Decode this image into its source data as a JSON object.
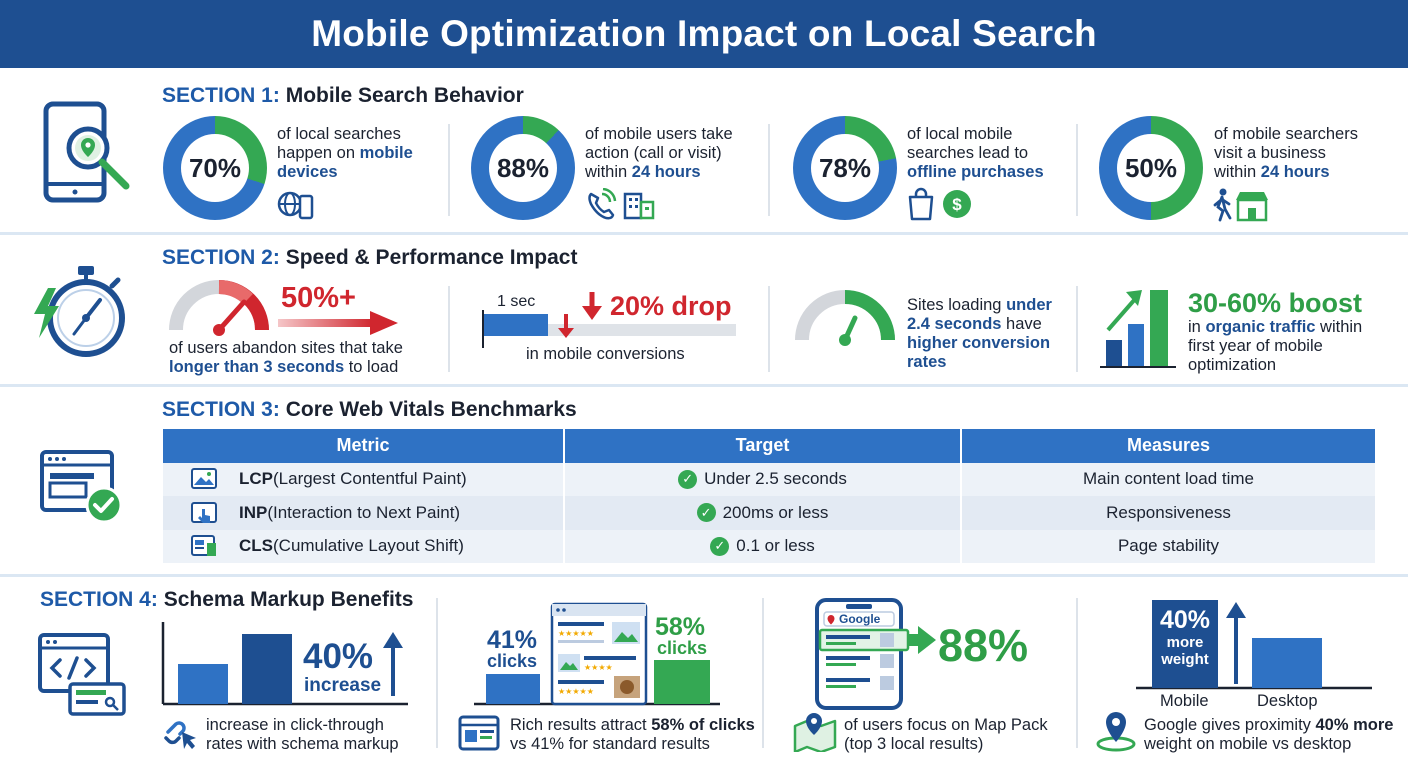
{
  "title": "Mobile Optimization Impact on Local Search",
  "colors": {
    "navy": "#1e4f91",
    "blue": "#2f72c4",
    "green": "#34a853",
    "red": "#d0262e"
  },
  "section1": {
    "num": "SECTION 1:",
    "name": "Mobile Search Behavior",
    "stats": [
      {
        "value": "70%",
        "percent": 70,
        "l1": "of local searches",
        "l2a": "happen on ",
        "l2b": "mobile",
        "l3": "devices",
        "icons": [
          "globe-icon",
          "smartphone-icon"
        ]
      },
      {
        "value": "88%",
        "percent": 88,
        "l1": "of mobile users take",
        "l2": "action (call or visit)",
        "l3a": "within ",
        "l3b": "24 hours",
        "icons": [
          "phone-call-icon",
          "building-icon"
        ]
      },
      {
        "value": "78%",
        "percent": 78,
        "l1": "of local mobile",
        "l2": "searches lead to",
        "l3": "offline purchases",
        "icons": [
          "shopping-bag-icon",
          "dollar-icon"
        ]
      },
      {
        "value": "50%",
        "percent": 50,
        "l1": "of mobile searchers",
        "l2": "visit a business",
        "l3a": "within ",
        "l3b": "24 hours",
        "icons": [
          "walking-person-icon",
          "storefront-icon"
        ]
      }
    ]
  },
  "section2": {
    "num": "SECTION 2:",
    "name": "Speed & Performance Impact",
    "abandon": {
      "value": "50%+",
      "l1": "of users abandon sites that take",
      "l2a": "longer than 3 seconds",
      "l2b": " to load"
    },
    "drop": {
      "label": "1 sec",
      "value": "20% drop",
      "caption": "in mobile conversions"
    },
    "loading": {
      "l1a": "Sites loading ",
      "l1b": "under",
      "l2a": "2.4 seconds",
      "l2b": " have",
      "l3": "higher conversion",
      "l4": "rates"
    },
    "boost": {
      "value": "30-60% boost",
      "l1a": "in ",
      "l1b": "organic traffic",
      "l1c": " within",
      "l2": "first year of mobile",
      "l3": "optimization"
    }
  },
  "section3": {
    "num": "SECTION 3:",
    "name": "Core Web Vitals Benchmarks",
    "headers": [
      "Metric",
      "Target",
      "Measures"
    ],
    "rows": [
      {
        "abbr": "LCP",
        "full": " (Largest Contentful Paint)",
        "target": "Under 2.5 seconds",
        "measures": "Main content load time",
        "icon": "image-icon"
      },
      {
        "abbr": "INP",
        "full": " (Interaction to Next Paint)",
        "target": "200ms or less",
        "measures": "Responsiveness",
        "icon": "tap-icon"
      },
      {
        "abbr": "CLS",
        "full": " (Cumulative Layout Shift)",
        "target": "0.1 or less",
        "measures": "Page stability",
        "icon": "layout-icon"
      }
    ]
  },
  "section4": {
    "num": "SECTION 4:",
    "name": "Schema Markup Benefits",
    "ctr": {
      "value": "40%",
      "sub": "increase",
      "l1": "increase in click-through",
      "l2": "rates with schema markup"
    },
    "rich": {
      "left_value": "41%",
      "left_sub": "clicks",
      "right_value": "58%",
      "right_sub": "clicks",
      "l1a": "Rich results attract ",
      "l1b": "58% of clicks",
      "l2": "vs 41% for standard results"
    },
    "mappack": {
      "brand": "Google",
      "value": "88%",
      "l1": "of users focus on Map Pack",
      "l2": "(top 3 local results)"
    },
    "proximity": {
      "value": "40%",
      "sub1": "more",
      "sub2": "weight",
      "x1": "Mobile",
      "x2": "Desktop",
      "l1a": "Google gives proximity ",
      "l1b": "40% more",
      "l2": "weight on mobile vs desktop"
    }
  }
}
